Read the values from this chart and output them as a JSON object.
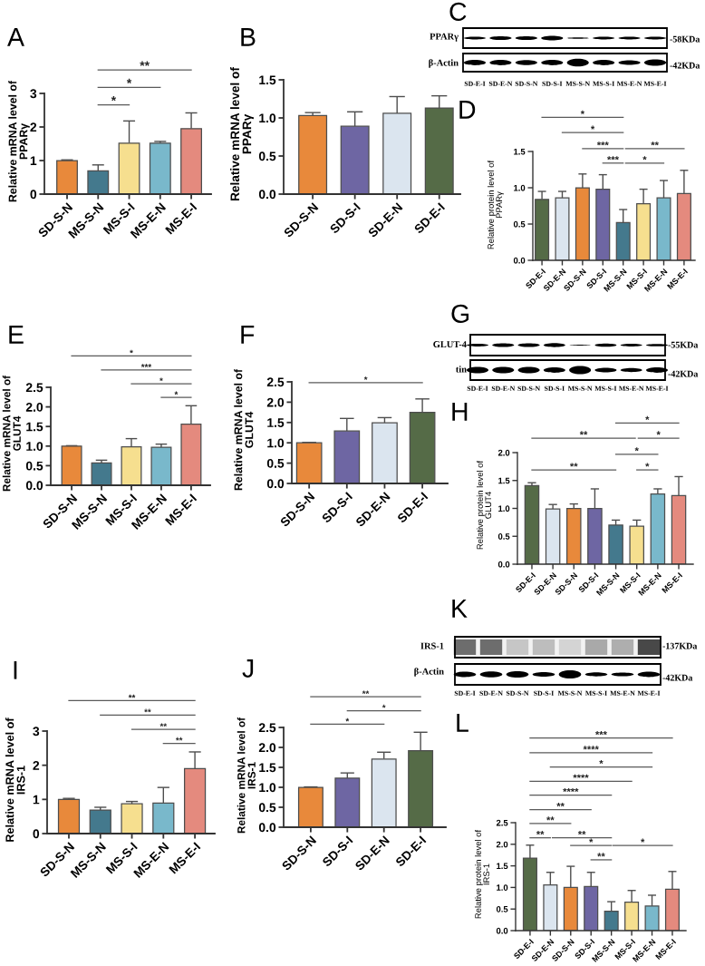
{
  "chart_data": [
    {
      "type": "bar",
      "title": "A",
      "ylabel": "Relative mRNA level of\nPPARγ",
      "categories": [
        "SD-S-N",
        "MS-S-N",
        "MS-S-I",
        "MS-E-N",
        "MS-E-I"
      ],
      "values": [
        1.0,
        0.69,
        1.52,
        1.52,
        1.95
      ],
      "colors": [
        "#e8893b",
        "#44798d",
        "#f6df8f",
        "#79b8cb",
        "#e48a7e"
      ],
      "errors": [
        [
          1.0,
          1.02
        ],
        [
          0.69,
          0.87
        ],
        [
          1.52,
          2.18
        ],
        [
          1.52,
          1.57
        ],
        [
          1.95,
          2.42
        ]
      ],
      "ylim": [
        0,
        3
      ],
      "yticks": [
        0,
        1,
        2,
        3
      ],
      "annotations": [
        "**",
        "*",
        "*"
      ]
    },
    {
      "type": "bar",
      "title": "B",
      "ylabel": "Relative mRNA level of\nPPARγ",
      "categories": [
        "SD-S-N",
        "SD-S-I",
        "SD-E-N",
        "SD-E-I"
      ],
      "values": [
        1.03,
        0.89,
        1.06,
        1.13
      ],
      "colors": [
        "#e8893b",
        "#6e66a3",
        "#dbe5ef",
        "#556b47"
      ],
      "errors": [
        [
          1.03,
          1.07
        ],
        [
          0.89,
          1.08
        ],
        [
          1.06,
          1.28
        ],
        [
          1.13,
          1.29
        ]
      ],
      "ylim": [
        0,
        1.5
      ],
      "yticks": [
        {
          "value": 0,
          "label": "0.0"
        },
        0.5,
        {
          "value": 1,
          "label": "1.0"
        },
        1.5
      ]
    },
    {
      "type": "other",
      "title": "C",
      "annotations": [
        "PPARγ",
        "β-Actin",
        "-58KDa",
        "-42KDa",
        "SD-E-I",
        "SD-E-N",
        "SD-S-N",
        "SD-S-I",
        "MS-S-N",
        "MS-S-I",
        "MS-E-N",
        "MS-E-I"
      ]
    },
    {
      "type": "bar",
      "title": "D",
      "ylabel": "Relative protein level of\nPPARγ",
      "categories": [
        "SD-E-I",
        "SD-E-N",
        "SD-S-N",
        "SD-S-I",
        "MS-S-N",
        "MS-S-I",
        "MS-E-N",
        "MS-E-I"
      ],
      "values": [
        0.84,
        0.86,
        1.0,
        0.98,
        0.52,
        0.78,
        0.86,
        0.92
      ],
      "colors": [
        "#556b47",
        "#dbe5ef",
        "#e8893b",
        "#6e66a3",
        "#44798d",
        "#f6df8f",
        "#79b8cb",
        "#e48a7e"
      ],
      "errors": [
        [
          0.84,
          0.95
        ],
        [
          0.86,
          0.95
        ],
        [
          1.0,
          1.19
        ],
        [
          0.98,
          1.18
        ],
        [
          0.52,
          0.7
        ],
        [
          0.78,
          0.98
        ],
        [
          0.86,
          1.1
        ],
        [
          0.92,
          1.24
        ]
      ],
      "ylim": [
        0,
        1.5
      ],
      "yticks": [
        {
          "value": 0,
          "label": "0.0"
        },
        0.5,
        {
          "value": 1,
          "label": "1.0"
        },
        1.5
      ],
      "annotations": [
        "*",
        "*",
        "***",
        "**",
        "***",
        "*"
      ]
    },
    {
      "type": "bar",
      "title": "E",
      "ylabel": "Relative mRNA level of\nGLUT4",
      "categories": [
        "SD-S-N",
        "MS-S-N",
        "MS-S-I",
        "MS-E-N",
        "MS-E-I"
      ],
      "values": [
        1.0,
        0.57,
        0.98,
        0.97,
        1.56
      ],
      "colors": [
        "#e8893b",
        "#44798d",
        "#f6df8f",
        "#79b8cb",
        "#e48a7e"
      ],
      "errors": [
        [
          1.0,
          1.01
        ],
        [
          0.57,
          0.64
        ],
        [
          0.98,
          1.19
        ],
        [
          0.97,
          1.05
        ],
        [
          1.56,
          2.03
        ]
      ],
      "ylim": [
        0,
        2.5
      ],
      "yticks": [
        {
          "value": 0,
          "label": "0.0"
        },
        0.5,
        {
          "value": 1,
          "label": "1.0"
        },
        1.5,
        {
          "value": 2,
          "label": "2.0"
        },
        2.5
      ],
      "annotations": [
        "*",
        "***",
        "*",
        "*"
      ]
    },
    {
      "type": "bar",
      "title": "F",
      "ylabel": "Relative mRNA level of\nGLUT4",
      "categories": [
        "SD-S-N",
        "SD-S-I",
        "SD-E-N",
        "SD-E-I"
      ],
      "values": [
        1.0,
        1.29,
        1.49,
        1.75
      ],
      "colors": [
        "#e8893b",
        "#6e66a3",
        "#dbe5ef",
        "#556b47"
      ],
      "errors": [
        [
          1.0,
          1.01
        ],
        [
          1.29,
          1.6
        ],
        [
          1.49,
          1.62
        ],
        [
          1.75,
          2.08
        ]
      ],
      "ylim": [
        0,
        2.5
      ],
      "yticks": [
        {
          "value": 0,
          "label": "0.0"
        },
        0.5,
        {
          "value": 1,
          "label": "1.0"
        },
        1.5,
        {
          "value": 2,
          "label": "2.0"
        },
        2.5
      ],
      "annotations": [
        "*"
      ]
    },
    {
      "type": "other",
      "title": "G",
      "annotations": [
        "GLUT-4",
        "tin",
        "-55KDa",
        "-42KDa",
        "SD-E-I",
        "SD-E-N",
        "SD-S-N",
        "SD-S-I",
        "MS-S-N",
        "MS-S-I",
        "MS-E-N",
        "MS-E-I"
      ]
    },
    {
      "type": "bar",
      "title": "H",
      "ylabel": "Relative protein level of\nGLUT4",
      "categories": [
        "SD-E-I",
        "SD-E-N",
        "SD-S-N",
        "SD-S-I",
        "MS-S-N",
        "MS-S-I",
        "MS-E-N",
        "MS-E-I"
      ],
      "values": [
        1.41,
        0.99,
        1.0,
        1.0,
        0.7,
        0.68,
        1.26,
        1.23
      ],
      "colors": [
        "#556b47",
        "#dbe5ef",
        "#e8893b",
        "#6e66a3",
        "#44798d",
        "#f6df8f",
        "#79b8cb",
        "#e48a7e"
      ],
      "errors": [
        [
          1.41,
          1.46
        ],
        [
          0.99,
          1.07
        ],
        [
          1.0,
          1.08
        ],
        [
          1.0,
          1.35
        ],
        [
          0.7,
          0.79
        ],
        [
          0.68,
          0.79
        ],
        [
          1.26,
          1.35
        ],
        [
          1.23,
          1.57
        ]
      ],
      "ylim": [
        0,
        2.0
      ],
      "yticks": [
        {
          "value": 0,
          "label": "0.0"
        },
        0.5,
        {
          "value": 1,
          "label": "1.0"
        },
        1.5,
        {
          "value": 2,
          "label": "2.0"
        }
      ],
      "annotations": [
        "*",
        "**",
        "*",
        "*",
        "**",
        "*"
      ]
    },
    {
      "type": "bar",
      "title": "I",
      "ylabel": "Relative mRNA level of\nIRS-1",
      "categories": [
        "SD-S-N",
        "MS-S-N",
        "MS-S-I",
        "MS-E-N",
        "MS-E-I"
      ],
      "values": [
        1.0,
        0.69,
        0.87,
        0.89,
        1.9
      ],
      "colors": [
        "#e8893b",
        "#44798d",
        "#f6df8f",
        "#79b8cb",
        "#e48a7e"
      ],
      "errors": [
        [
          1.0,
          1.03
        ],
        [
          0.69,
          0.77
        ],
        [
          0.87,
          0.94
        ],
        [
          0.89,
          1.35
        ],
        [
          1.9,
          2.39
        ]
      ],
      "ylim": [
        0,
        3
      ],
      "yticks": [
        0,
        1,
        2,
        3
      ],
      "annotations": [
        "**",
        "**",
        "**",
        "**"
      ]
    },
    {
      "type": "bar",
      "title": "J",
      "ylabel": "Relative mRNA level of\nIRS-1",
      "categories": [
        "SD-S-N",
        "SD-S-I",
        "SD-E-N",
        "SD-E-I"
      ],
      "values": [
        1.0,
        1.23,
        1.71,
        1.92
      ],
      "colors": [
        "#e8893b",
        "#6e66a3",
        "#dbe5ef",
        "#556b47"
      ],
      "errors": [
        [
          1.0,
          1.01
        ],
        [
          1.23,
          1.36
        ],
        [
          1.71,
          1.88
        ],
        [
          1.92,
          2.38
        ]
      ],
      "ylim": [
        0,
        2.5
      ],
      "yticks": [
        {
          "value": 0,
          "label": "0.0"
        },
        0.5,
        {
          "value": 1,
          "label": "1.0"
        },
        1.5,
        {
          "value": 2,
          "label": "2.0"
        },
        2.5
      ],
      "annotations": [
        "**",
        "*",
        "*"
      ]
    },
    {
      "type": "other",
      "title": "K",
      "annotations": [
        "IRS-1",
        "β-Actin",
        "-137KDa",
        "-42KDa",
        "SD-E-I",
        "SD-E-N",
        "SD-S-N",
        "SD-S-I",
        "MS-S-N",
        "MS-S-I",
        "MS-E-N",
        "MS-E-I"
      ]
    },
    {
      "type": "bar",
      "title": "L",
      "ylabel": "Relative protein level of\nIRS-1",
      "categories": [
        "SD-E-I",
        "SD-E-N",
        "SD-S-N",
        "SD-S-I",
        "MS-S-N",
        "MS-S-I",
        "MS-E-N",
        "MS-E-I"
      ],
      "values": [
        1.68,
        1.06,
        1.0,
        1.02,
        0.45,
        0.66,
        0.57,
        0.96
      ],
      "colors": [
        "#556b47",
        "#dbe5ef",
        "#e8893b",
        "#6e66a3",
        "#44798d",
        "#f6df8f",
        "#79b8cb",
        "#e48a7e"
      ],
      "errors": [
        [
          1.68,
          1.98
        ],
        [
          1.06,
          1.35
        ],
        [
          1.0,
          1.49
        ],
        [
          1.02,
          1.35
        ],
        [
          0.45,
          0.67
        ],
        [
          0.66,
          0.93
        ],
        [
          0.57,
          0.82
        ],
        [
          0.96,
          1.37
        ]
      ],
      "ylim": [
        0,
        2.5
      ],
      "yticks": [
        {
          "value": 0,
          "label": "0.0"
        },
        0.5,
        {
          "value": 1,
          "label": "1.0"
        },
        1.5,
        {
          "value": 2,
          "label": "2.0"
        },
        2.5
      ],
      "annotations": [
        "***",
        "****",
        "*",
        "****",
        "****",
        "**",
        "**",
        "**",
        "**",
        "*",
        "*",
        "**"
      ]
    }
  ]
}
